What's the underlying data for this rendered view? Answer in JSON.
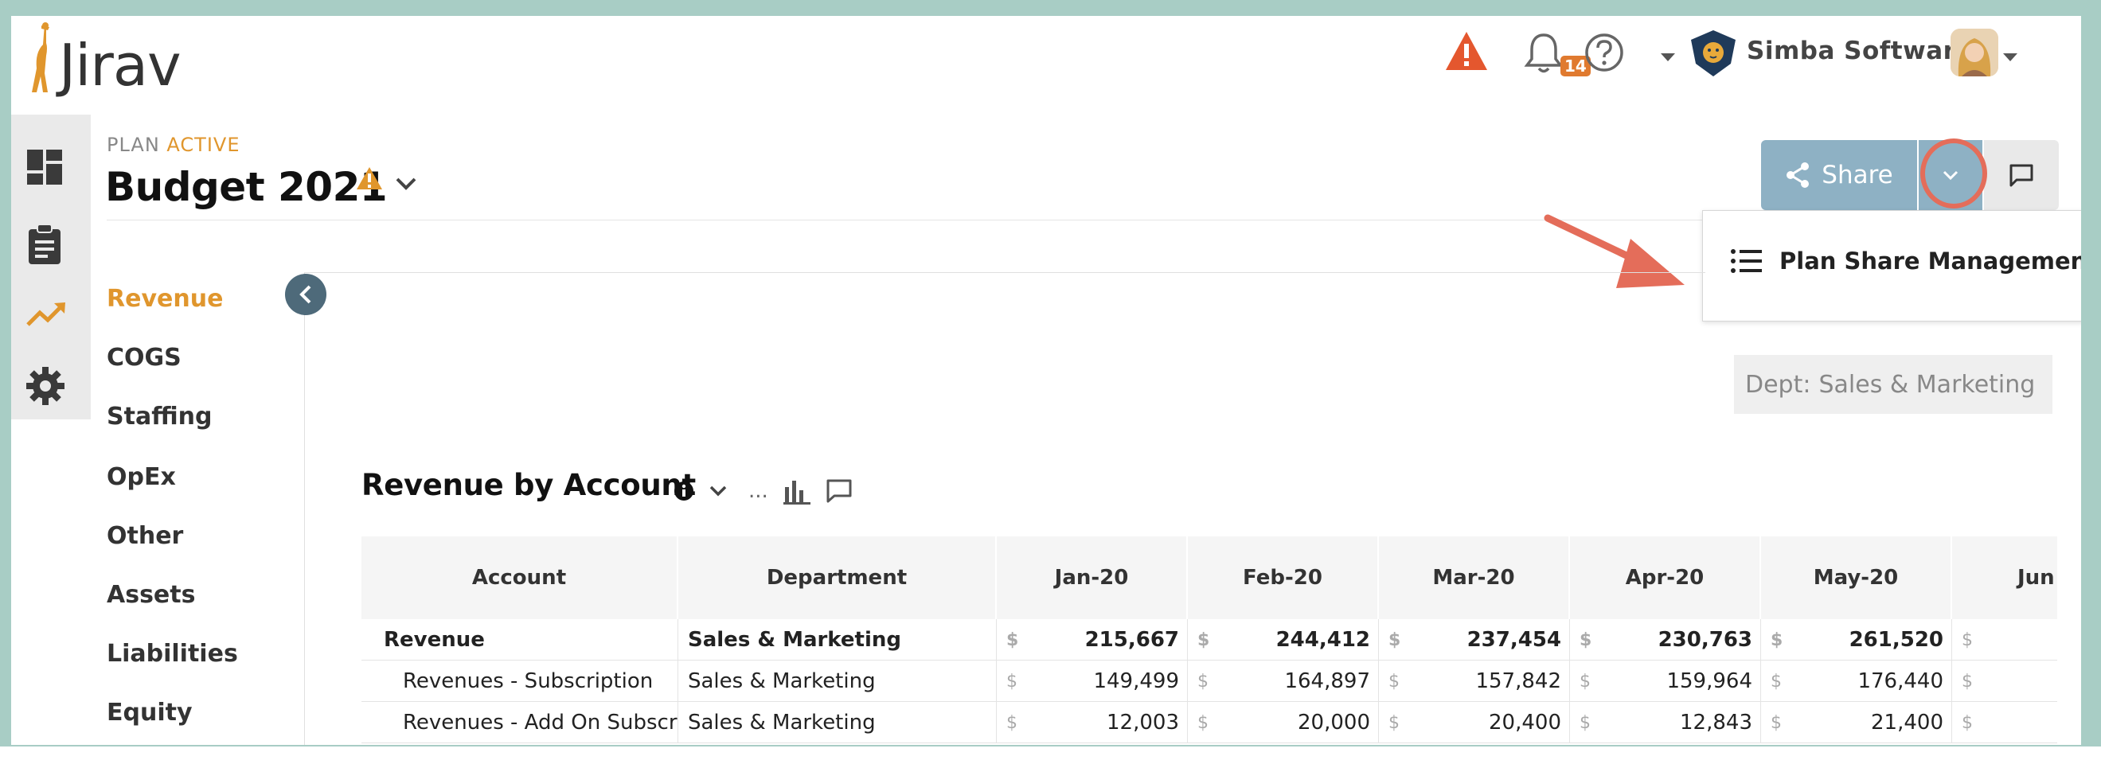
{
  "header": {
    "logo_text": "Jirav",
    "notification_count": "14",
    "company_name": "Simba Software"
  },
  "icons": {
    "warning": "warning-icon",
    "bell": "bell-icon",
    "help": "help-icon",
    "dashboard": "dashboard-icon",
    "reports": "clipboard-icon",
    "planning": "trend-icon",
    "settings": "gear-icon"
  },
  "plan": {
    "label_prefix": "PLAN",
    "label_status": "ACTIVE",
    "title": "Budget 2021"
  },
  "share": {
    "label": "Share",
    "menu_item": "Plan Share Management"
  },
  "nav": {
    "items": [
      "Revenue",
      "COGS",
      "Staffing",
      "OpEx",
      "Other",
      "Assets",
      "Liabilities",
      "Equity"
    ],
    "active": "Revenue"
  },
  "filter": {
    "dept_label": "Dept:",
    "dept_value": "Sales & Marketing"
  },
  "table": {
    "title": "Revenue by Account",
    "more": "...",
    "columns": [
      "Account",
      "Department",
      "Jan-20",
      "Feb-20",
      "Mar-20",
      "Apr-20",
      "May-20",
      "Jun"
    ],
    "currency": "$",
    "rows": [
      {
        "account": "Revenue",
        "department": "Sales & Marketing",
        "values": [
          "215,667",
          "244,412",
          "237,454",
          "230,763",
          "261,520"
        ]
      },
      {
        "account": "Revenues - Subscription",
        "department": "Sales & Marketing",
        "values": [
          "149,499",
          "164,897",
          "157,842",
          "159,964",
          "176,440"
        ]
      },
      {
        "account": "Revenues - Add On Subscri...",
        "department": "Sales & Marketing",
        "values": [
          "12,003",
          "20,000",
          "20,400",
          "12,843",
          "21,400"
        ]
      }
    ]
  },
  "colors": {
    "accent": "#e0962d",
    "share_button": "#8eb1c4",
    "highlight": "#e46d5a",
    "collapse_button": "#4e6a7a"
  }
}
